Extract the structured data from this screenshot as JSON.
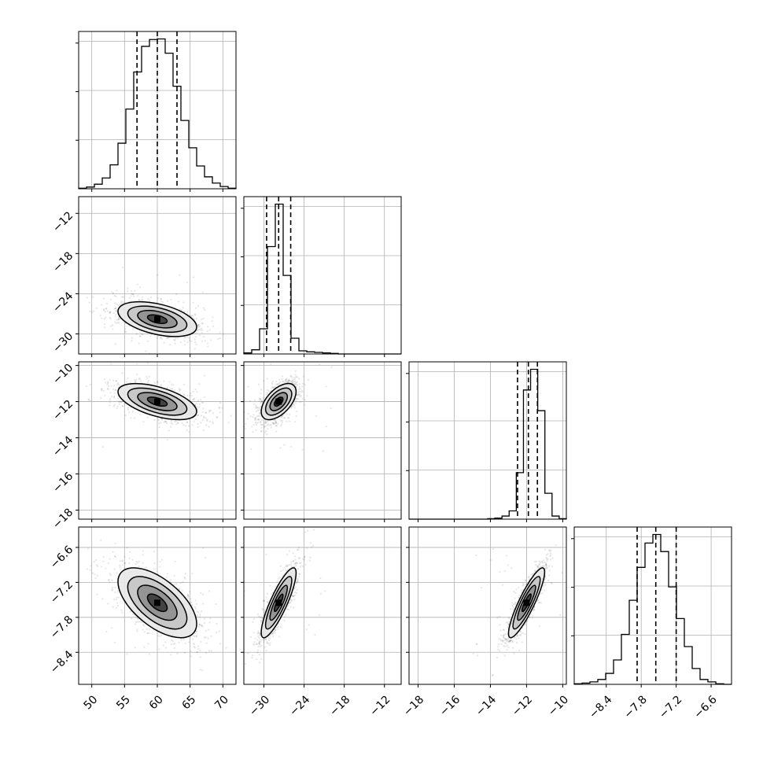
{
  "chart_data": {
    "type": "corner",
    "params": [
      {
        "median": 60.0,
        "sigma": 3.0,
        "lim": [
          48.0,
          72.0
        ],
        "ticks": [
          50,
          55,
          60,
          65,
          70
        ],
        "quantiles": [
          56.9,
          60.0,
          63.0
        ]
      },
      {
        "median": -27.8,
        "sigma": 1.3,
        "lim": [
          -33.0,
          -9.5
        ],
        "ticks": [
          -30,
          -24,
          -18,
          -12
        ],
        "quantiles": [
          -29.6,
          -27.8,
          -26.0
        ]
      },
      {
        "median": -12.0,
        "sigma": 0.5,
        "lim": [
          -18.5,
          -9.8
        ],
        "ticks": [
          -18,
          -16,
          -14,
          -12,
          -10
        ],
        "quantiles": [
          -12.5,
          -11.9,
          -11.4
        ]
      },
      {
        "median": -7.55,
        "sigma": 0.3,
        "lim": [
          -8.95,
          -6.25
        ],
        "ticks": [
          -8.4,
          -7.8,
          -7.2,
          -6.6
        ],
        "quantiles": [
          -7.87,
          -7.55,
          -7.2
        ]
      }
    ],
    "tick_labels": [
      [
        "50",
        "55",
        "60",
        "65",
        "70"
      ],
      [
        "−30",
        "−24",
        "−18",
        "−12"
      ],
      [
        "−18",
        "−16",
        "−14",
        "−12",
        "−10"
      ],
      [
        "−8.4",
        "−7.8",
        "−7.2",
        "−6.6"
      ]
    ],
    "y_tick_labels": [
      null,
      [
        "−12",
        "−18",
        "−24",
        "−30"
      ],
      [
        "−10",
        "−12",
        "−14",
        "−16",
        "−18"
      ],
      [
        "−6.6",
        "−7.2",
        "−7.8",
        "−8.4"
      ]
    ],
    "histograms": [
      [
        1,
        3,
        8,
        19,
        42,
        80,
        140,
        205,
        250,
        262,
        263,
        238,
        180,
        120,
        72,
        40,
        21,
        10,
        4,
        1
      ],
      [
        2,
        8,
        48,
        205,
        286,
        150,
        30,
        6,
        4,
        3,
        2,
        1,
        0,
        0,
        0,
        0,
        0,
        0,
        0,
        0
      ],
      [
        0,
        0,
        0,
        0,
        0,
        0,
        0,
        0,
        0,
        0,
        0,
        1,
        2,
        6,
        16,
        90,
        250,
        290,
        210,
        50,
        6,
        1
      ],
      [
        1,
        2,
        4,
        8,
        18,
        40,
        82,
        138,
        192,
        232,
        246,
        218,
        160,
        108,
        62,
        26,
        8,
        4,
        1,
        0
      ]
    ],
    "correlations": {
      "1-0": -0.45,
      "2-0": -0.55,
      "2-1": 0.55,
      "3-0": -0.6,
      "3-1": 0.85,
      "3-2": 0.88
    },
    "grid": true
  }
}
